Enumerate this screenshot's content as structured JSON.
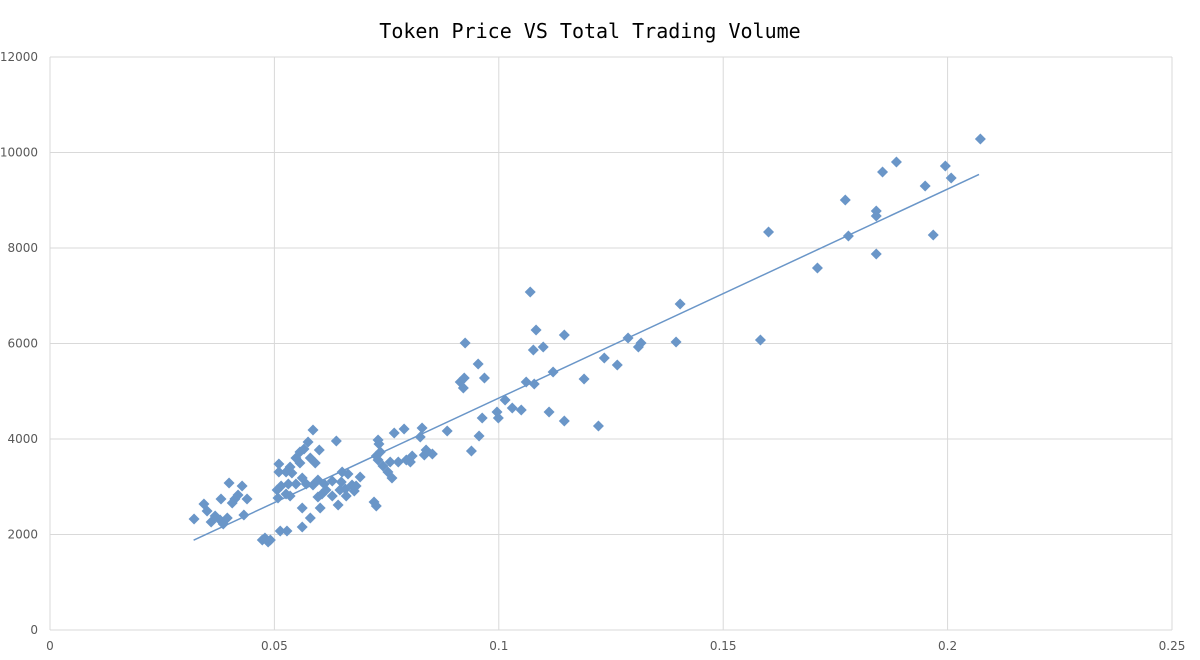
{
  "chart_data": {
    "type": "scatter",
    "title": "Token Price VS Total Trading Volume",
    "xlabel": "",
    "ylabel": "",
    "xlim": [
      0,
      0.25
    ],
    "ylim": [
      0,
      12000
    ],
    "xticks": [
      "0",
      "0.05",
      "0.1",
      "0.15",
      "0.2",
      "0.25"
    ],
    "yticks": [
      "0",
      "2000",
      "4000",
      "6000",
      "8000",
      "10000",
      "12000"
    ],
    "grid": true,
    "legend": "none",
    "marker_color": "#6a96c8",
    "trendline": {
      "type": "linear",
      "x": [
        0.032,
        0.207
      ],
      "y": [
        1880,
        9540
      ],
      "color": "#6a96c8"
    },
    "points": [
      [
        0.2073,
        10283
      ],
      [
        0.1995,
        9717
      ],
      [
        0.2008,
        9466
      ],
      [
        0.195,
        9298
      ],
      [
        0.1886,
        9801
      ],
      [
        0.1855,
        9592
      ],
      [
        0.1772,
        9005
      ],
      [
        0.1841,
        8775
      ],
      [
        0.1841,
        8670
      ],
      [
        0.1779,
        8251
      ],
      [
        0.1968,
        8272
      ],
      [
        0.1841,
        7874
      ],
      [
        0.1601,
        8335
      ],
      [
        0.171,
        7581
      ],
      [
        0.1404,
        6827
      ],
      [
        0.1395,
        6031
      ],
      [
        0.1583,
        6073
      ],
      [
        0.1288,
        6115
      ],
      [
        0.1317,
        6010
      ],
      [
        0.1311,
        5927
      ],
      [
        0.1235,
        5696
      ],
      [
        0.1264,
        5550
      ],
      [
        0.119,
        5257
      ],
      [
        0.1121,
        5403
      ],
      [
        0.1146,
        6178
      ],
      [
        0.1083,
        6283
      ],
      [
        0.107,
        7079
      ],
      [
        0.1099,
        5927
      ],
      [
        0.1077,
        5864
      ],
      [
        0.1061,
        5194
      ],
      [
        0.1079,
        5152
      ],
      [
        0.1112,
        4565
      ],
      [
        0.1146,
        4377
      ],
      [
        0.1222,
        4272
      ],
      [
        0.1014,
        4817
      ],
      [
        0.103,
        4649
      ],
      [
        0.105,
        4607
      ],
      [
        0.0996,
        4565
      ],
      [
        0.0999,
        4440
      ],
      [
        0.0925,
        6010
      ],
      [
        0.0954,
        5571
      ],
      [
        0.0968,
        5277
      ],
      [
        0.0914,
        5194
      ],
      [
        0.0923,
        5277
      ],
      [
        0.0921,
        5068
      ],
      [
        0.0963,
        4440
      ],
      [
        0.0956,
        4063
      ],
      [
        0.0939,
        3749
      ],
      [
        0.0885,
        4168
      ],
      [
        0.0829,
        4230
      ],
      [
        0.0825,
        4042
      ],
      [
        0.0789,
        4209
      ],
      [
        0.0767,
        4126
      ],
      [
        0.0731,
        3979
      ],
      [
        0.0733,
        3895
      ],
      [
        0.0736,
        3728
      ],
      [
        0.0727,
        3644
      ],
      [
        0.0731,
        3560
      ],
      [
        0.0742,
        3435
      ],
      [
        0.0753,
        3309
      ],
      [
        0.0762,
        3183
      ],
      [
        0.0722,
        2681
      ],
      [
        0.0727,
        2597
      ],
      [
        0.0758,
        3518
      ],
      [
        0.0776,
        3518
      ],
      [
        0.0794,
        3560
      ],
      [
        0.0807,
        3644
      ],
      [
        0.0803,
        3518
      ],
      [
        0.0838,
        3770
      ],
      [
        0.0852,
        3686
      ],
      [
        0.0834,
        3665
      ],
      [
        0.0638,
        3958
      ],
      [
        0.0664,
        3267
      ],
      [
        0.0649,
        3100
      ],
      [
        0.0691,
        3204
      ],
      [
        0.0673,
        3037
      ],
      [
        0.0678,
        2911
      ],
      [
        0.066,
        2806
      ],
      [
        0.0642,
        2618
      ],
      [
        0.0629,
        2806
      ],
      [
        0.0615,
        2932
      ],
      [
        0.0606,
        2848
      ],
      [
        0.0597,
        3141
      ],
      [
        0.0586,
        3037
      ],
      [
        0.06,
        3770
      ],
      [
        0.0586,
        4188
      ],
      [
        0.0575,
        3937
      ],
      [
        0.0566,
        3791
      ],
      [
        0.0557,
        3728
      ],
      [
        0.0548,
        3602
      ],
      [
        0.058,
        3602
      ],
      [
        0.0591,
        3497
      ],
      [
        0.0557,
        3497
      ],
      [
        0.0535,
        3414
      ],
      [
        0.0526,
        3309
      ],
      [
        0.0539,
        3288
      ],
      [
        0.051,
        3476
      ],
      [
        0.051,
        3309
      ],
      [
        0.0562,
        3183
      ],
      [
        0.0548,
        3058
      ],
      [
        0.0571,
        3058
      ],
      [
        0.0531,
        3058
      ],
      [
        0.0515,
        3016
      ],
      [
        0.0506,
        2932
      ],
      [
        0.0526,
        2848
      ],
      [
        0.0508,
        2764
      ],
      [
        0.0535,
        2806
      ],
      [
        0.0597,
        2785
      ],
      [
        0.0602,
        2555
      ],
      [
        0.0562,
        2555
      ],
      [
        0.058,
        2346
      ],
      [
        0.0562,
        2157
      ],
      [
        0.0528,
        2073
      ],
      [
        0.0513,
        2073
      ],
      [
        0.0479,
        1927
      ],
      [
        0.0473,
        1885
      ],
      [
        0.0491,
        1885
      ],
      [
        0.0486,
        1843
      ],
      [
        0.0321,
        2325
      ],
      [
        0.0343,
        2639
      ],
      [
        0.035,
        2492
      ],
      [
        0.0359,
        2262
      ],
      [
        0.0368,
        2387
      ],
      [
        0.0379,
        2304
      ],
      [
        0.0386,
        2220
      ],
      [
        0.0395,
        2346
      ],
      [
        0.0381,
        2743
      ],
      [
        0.0399,
        3079
      ],
      [
        0.0428,
        3016
      ],
      [
        0.0412,
        2743
      ],
      [
        0.0419,
        2827
      ],
      [
        0.0439,
        2743
      ],
      [
        0.0432,
        2408
      ],
      [
        0.0406,
        2660
      ],
      [
        0.0611,
        3058
      ],
      [
        0.0629,
        3120
      ],
      [
        0.0651,
        3309
      ],
      [
        0.0658,
        2953
      ],
      [
        0.0646,
        2932
      ],
      [
        0.0682,
        3016
      ]
    ]
  }
}
